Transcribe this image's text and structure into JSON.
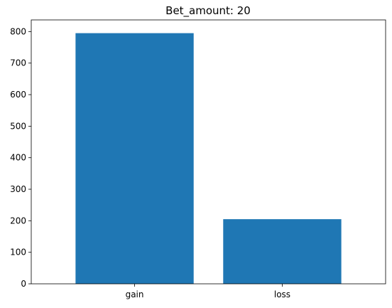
{
  "chart_data": {
    "type": "bar",
    "title": "Bet_amount: 20",
    "xlabel": "",
    "ylabel": "",
    "categories": [
      "gain",
      "loss"
    ],
    "values": [
      795,
      205
    ],
    "ylim": [
      0,
      837
    ],
    "yticks": [
      0,
      100,
      200,
      300,
      400,
      500,
      600,
      700,
      800
    ],
    "bar_color": "#1f77b4",
    "grid": false,
    "legend": "none"
  }
}
